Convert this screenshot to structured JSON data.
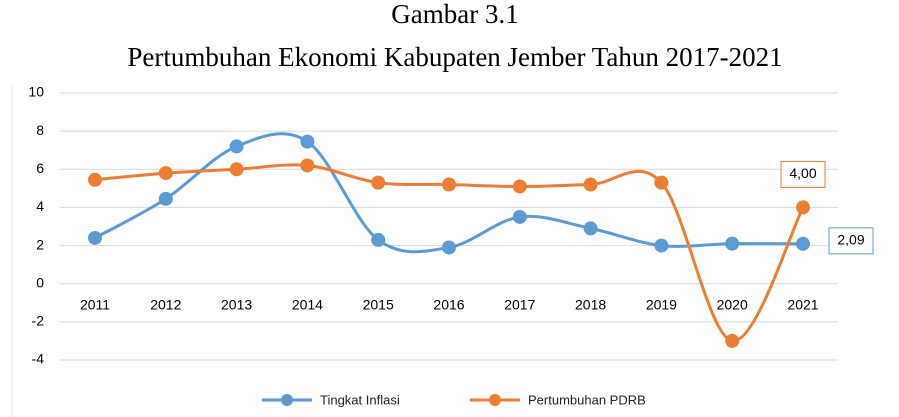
{
  "chart_data": {
    "type": "line",
    "title": "Gambar 3.1",
    "subtitle": "Pertumbuhan Ekonomi Kabupaten Jember Tahun 2017-2021",
    "categories": [
      "2011",
      "2012",
      "2013",
      "2014",
      "2015",
      "2016",
      "2017",
      "2018",
      "2019",
      "2020",
      "2021"
    ],
    "series": [
      {
        "name": "Tingkat Inflasi",
        "color": "#5b9bd5",
        "values": [
          2.4,
          4.45,
          7.2,
          7.45,
          2.3,
          1.9,
          3.5,
          2.9,
          2.0,
          2.1,
          2.09
        ],
        "value_labels": [
          null,
          null,
          null,
          null,
          null,
          null,
          null,
          null,
          null,
          null,
          "2,09"
        ]
      },
      {
        "name": "Pertumbuhan PDRB",
        "color": "#ed7d31",
        "values": [
          5.45,
          5.8,
          6.0,
          6.2,
          5.3,
          5.2,
          5.1,
          5.2,
          5.3,
          -3.0,
          4.0
        ],
        "value_labels": [
          null,
          null,
          null,
          null,
          null,
          null,
          null,
          null,
          null,
          null,
          "4,00"
        ]
      }
    ],
    "ylim": [
      -4,
      10
    ],
    "yticks": [
      -4,
      -2,
      0,
      2,
      4,
      6,
      8,
      10
    ],
    "grid": true,
    "smooth": true,
    "legend": "bottom"
  }
}
